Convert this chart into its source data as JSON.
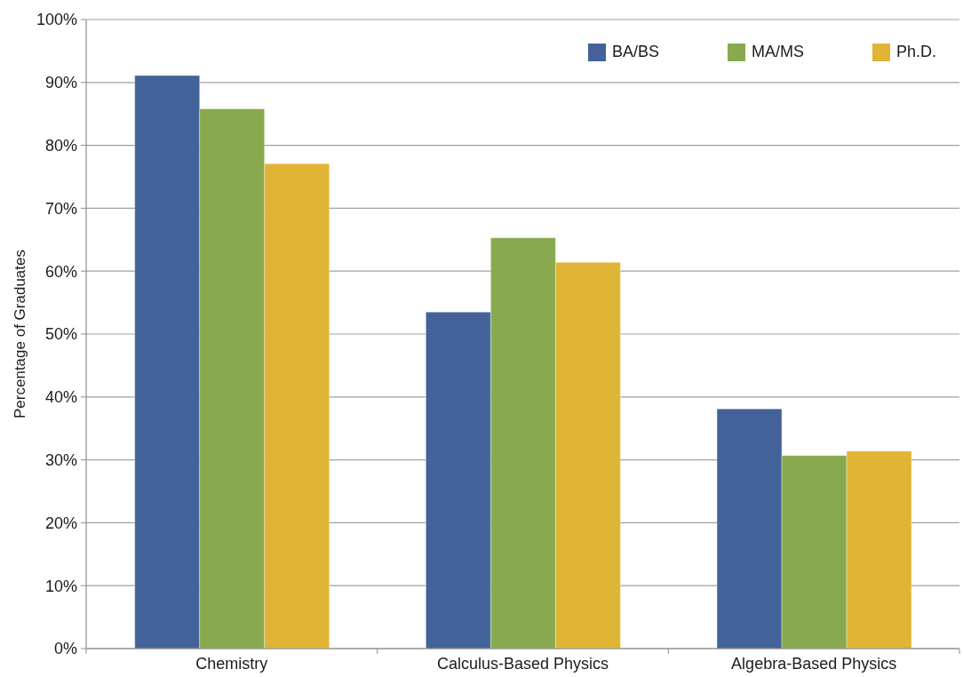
{
  "chart_data": {
    "type": "bar",
    "ylabel": "Percentage of Graduates",
    "categories": [
      "Chemistry",
      "Calculus-Based Physics",
      "Algebra-Based Physics"
    ],
    "series": [
      {
        "name": "BA/BS",
        "color": "#426299",
        "values": [
          91.1,
          53.5,
          38.1
        ]
      },
      {
        "name": "MA/MS",
        "color": "#89a94f",
        "values": [
          85.8,
          65.3,
          30.7
        ]
      },
      {
        "name": "Ph.D.",
        "color": "#e0b535",
        "values": [
          77.1,
          61.4,
          31.4
        ]
      }
    ],
    "ylim": [
      0,
      100
    ],
    "yticks": [
      {
        "value": 0,
        "label": "0%"
      },
      {
        "value": 10,
        "label": "10%"
      },
      {
        "value": 20,
        "label": "20%"
      },
      {
        "value": 30,
        "label": "30%"
      },
      {
        "value": 40,
        "label": "40%"
      },
      {
        "value": 50,
        "label": "50%"
      },
      {
        "value": 60,
        "label": "60%"
      },
      {
        "value": 70,
        "label": "70%"
      },
      {
        "value": 80,
        "label": "80%"
      },
      {
        "value": 90,
        "label": "90%"
      },
      {
        "value": 100,
        "label": "100%"
      }
    ],
    "grid": "y",
    "legend": "top right"
  }
}
